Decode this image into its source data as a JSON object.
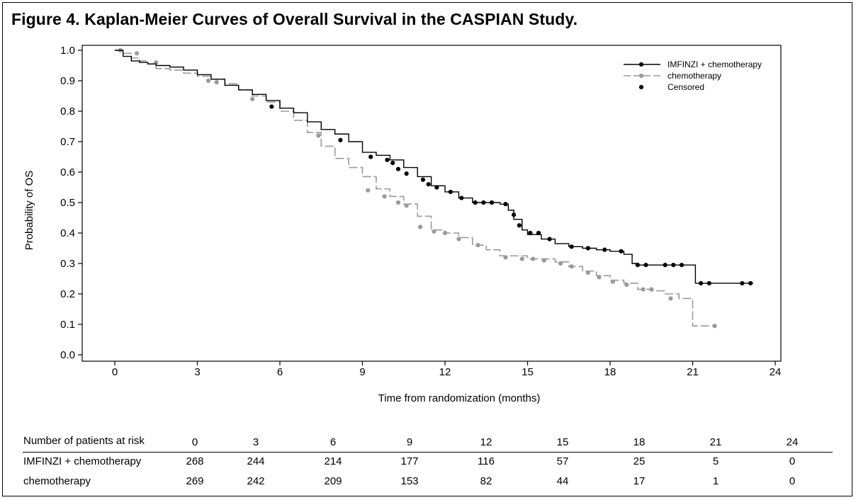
{
  "title": "Figure 4. Kaplan-Meier Curves of Overall Survival in the CASPIAN Study.",
  "colors": {
    "imfinzi": "#000000",
    "chemo": "#9a9a9a"
  },
  "chart_data": {
    "type": "line",
    "title": "Figure 4. Kaplan-Meier Curves of Overall Survival in the CASPIAN Study.",
    "xlabel": "Time from randomization (months)",
    "ylabel": "Probability of OS",
    "xlim": [
      0,
      24
    ],
    "ylim": [
      0,
      1
    ],
    "xticks": [
      0,
      3,
      6,
      9,
      12,
      15,
      18,
      21,
      24
    ],
    "yticks": [
      "0.0",
      "0.1",
      "0.2",
      "0.3",
      "0.4",
      "0.5",
      "0.6",
      "0.7",
      "0.8",
      "0.9",
      "1.0"
    ],
    "legend_position": "top-right",
    "legend": [
      "IMFINZI + chemotherapy",
      "chemotherapy",
      "Censored"
    ],
    "series": [
      {
        "name": "IMFINZI + chemotherapy",
        "style": "solid",
        "x": [
          0,
          0.3,
          0.6,
          0.9,
          1.2,
          1.5,
          2.0,
          2.5,
          3.0,
          3.5,
          4.0,
          4.5,
          5.0,
          5.5,
          6.0,
          6.5,
          7.0,
          7.5,
          8.0,
          8.5,
          9.0,
          9.5,
          10.0,
          10.5,
          11.0,
          11.5,
          12.0,
          12.5,
          13.0,
          14.0,
          14.3,
          14.5,
          14.8,
          15.0,
          15.5,
          16.0,
          16.5,
          17.0,
          17.5,
          18.0,
          18.5,
          18.8,
          19.0,
          20.0,
          21.0,
          21.1,
          23.2
        ],
        "y": [
          1.0,
          0.98,
          0.965,
          0.96,
          0.955,
          0.95,
          0.945,
          0.935,
          0.92,
          0.905,
          0.885,
          0.87,
          0.855,
          0.835,
          0.81,
          0.795,
          0.765,
          0.74,
          0.725,
          0.7,
          0.665,
          0.655,
          0.64,
          0.615,
          0.585,
          0.555,
          0.535,
          0.515,
          0.5,
          0.495,
          0.475,
          0.445,
          0.41,
          0.395,
          0.38,
          0.365,
          0.355,
          0.35,
          0.345,
          0.34,
          0.33,
          0.3,
          0.295,
          0.295,
          0.295,
          0.235,
          0.235
        ],
        "censored": [
          [
            5.7,
            0.815
          ],
          [
            8.2,
            0.705
          ],
          [
            9.3,
            0.65
          ],
          [
            9.9,
            0.64
          ],
          [
            10.1,
            0.63
          ],
          [
            10.3,
            0.61
          ],
          [
            10.6,
            0.595
          ],
          [
            11.2,
            0.575
          ],
          [
            11.4,
            0.56
          ],
          [
            11.7,
            0.55
          ],
          [
            12.2,
            0.535
          ],
          [
            12.6,
            0.515
          ],
          [
            13.1,
            0.5
          ],
          [
            13.4,
            0.5
          ],
          [
            13.7,
            0.5
          ],
          [
            14.2,
            0.495
          ],
          [
            14.5,
            0.46
          ],
          [
            14.7,
            0.425
          ],
          [
            15.1,
            0.4
          ],
          [
            15.4,
            0.4
          ],
          [
            15.8,
            0.38
          ],
          [
            16.6,
            0.355
          ],
          [
            17.2,
            0.35
          ],
          [
            17.8,
            0.345
          ],
          [
            18.4,
            0.34
          ],
          [
            19.0,
            0.295
          ],
          [
            19.3,
            0.295
          ],
          [
            20.0,
            0.295
          ],
          [
            20.3,
            0.295
          ],
          [
            20.6,
            0.295
          ],
          [
            21.3,
            0.235
          ],
          [
            21.6,
            0.235
          ],
          [
            22.8,
            0.235
          ],
          [
            23.1,
            0.235
          ]
        ]
      },
      {
        "name": "chemotherapy",
        "style": "dashed",
        "x": [
          0,
          0.3,
          0.6,
          0.9,
          1.2,
          1.5,
          2.0,
          2.5,
          3.0,
          3.5,
          4.0,
          4.5,
          5.0,
          5.5,
          6.0,
          6.5,
          7.0,
          7.5,
          8.0,
          8.5,
          9.0,
          9.5,
          10.0,
          10.5,
          11.0,
          11.5,
          12.0,
          12.5,
          13.0,
          13.5,
          14.0,
          15.0,
          16.0,
          16.5,
          17.0,
          17.5,
          18.0,
          18.5,
          19.0,
          19.5,
          20.0,
          20.5,
          20.7,
          21.0,
          21.8
        ],
        "y": [
          1.0,
          0.99,
          0.975,
          0.965,
          0.955,
          0.94,
          0.935,
          0.925,
          0.915,
          0.905,
          0.89,
          0.87,
          0.85,
          0.83,
          0.8,
          0.77,
          0.73,
          0.685,
          0.645,
          0.615,
          0.585,
          0.545,
          0.52,
          0.495,
          0.455,
          0.41,
          0.4,
          0.385,
          0.36,
          0.345,
          0.325,
          0.315,
          0.305,
          0.29,
          0.275,
          0.26,
          0.245,
          0.235,
          0.215,
          0.21,
          0.2,
          0.185,
          0.185,
          0.095,
          0.095
        ],
        "censored": [
          [
            0.2,
            1.0
          ],
          [
            0.8,
            0.99
          ],
          [
            1.5,
            0.96
          ],
          [
            3.4,
            0.9
          ],
          [
            3.7,
            0.895
          ],
          [
            5.0,
            0.84
          ],
          [
            7.4,
            0.72
          ],
          [
            9.2,
            0.54
          ],
          [
            9.8,
            0.52
          ],
          [
            10.3,
            0.5
          ],
          [
            10.6,
            0.49
          ],
          [
            11.1,
            0.42
          ],
          [
            11.6,
            0.405
          ],
          [
            12.0,
            0.4
          ],
          [
            12.5,
            0.38
          ],
          [
            13.2,
            0.36
          ],
          [
            14.2,
            0.32
          ],
          [
            14.8,
            0.315
          ],
          [
            15.2,
            0.315
          ],
          [
            15.6,
            0.31
          ],
          [
            16.2,
            0.3
          ],
          [
            16.6,
            0.29
          ],
          [
            17.2,
            0.27
          ],
          [
            17.6,
            0.255
          ],
          [
            18.1,
            0.24
          ],
          [
            18.6,
            0.23
          ],
          [
            19.2,
            0.215
          ],
          [
            19.5,
            0.215
          ],
          [
            20.2,
            0.185
          ],
          [
            21.8,
            0.095
          ]
        ]
      }
    ],
    "risk_table": {
      "header_label": "Number of patients at risk",
      "times": [
        "0",
        "3",
        "6",
        "9",
        "12",
        "15",
        "18",
        "21",
        "24"
      ],
      "rows": [
        {
          "label": "IMFINZI + chemotherapy",
          "values": [
            "268",
            "244",
            "214",
            "177",
            "116",
            "57",
            "25",
            "5",
            "0"
          ]
        },
        {
          "label": "chemotherapy",
          "values": [
            "269",
            "242",
            "209",
            "153",
            "82",
            "44",
            "17",
            "1",
            "0"
          ]
        }
      ]
    }
  }
}
